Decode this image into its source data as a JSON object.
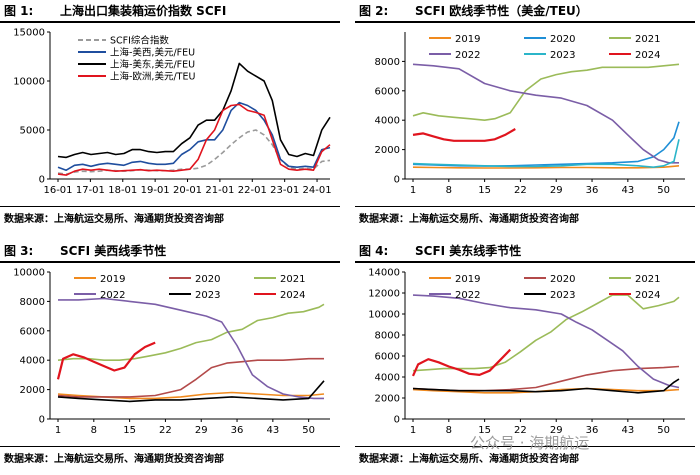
{
  "watermark": "公众号 · 海期航运",
  "charts": [
    {
      "id": "fig1",
      "title_num": "图 1:",
      "title": "上海出口集装箱运价指数 SCFI",
      "source": "数据来源：上海航运交易所、海通期货投资咨询部",
      "chart_data": {
        "type": "line",
        "xlabels": [
          "16-01",
          "17-01",
          "18-01",
          "19-01",
          "20-01",
          "21-01",
          "22-01",
          "23-01",
          "24-01"
        ],
        "ylim": [
          0,
          15000
        ],
        "yticks": [
          0,
          5000,
          10000,
          15000
        ],
        "legend_pos": "top-left",
        "series": [
          {
            "name": "SCFI综合指数",
            "color": "#9a9a9a",
            "dash": true,
            "values": [
              600,
              500,
              700,
              800,
              750,
              800,
              900,
              850,
              800,
              850,
              950,
              900,
              850,
              850,
              900,
              1000,
              1000,
              1100,
              1400,
              2000,
              2700,
              3500,
              4200,
              4800,
              5000,
              4500,
              3500,
              2000,
              1200,
              1000,
              1100,
              1000,
              1800,
              1900
            ]
          },
          {
            "name": "上海-美西,美元/FEU",
            "color": "#1f4e9e",
            "dash": false,
            "values": [
              1200,
              900,
              1400,
              1500,
              1300,
              1500,
              1600,
              1500,
              1400,
              1700,
              1800,
              1600,
              1500,
              1500,
              1600,
              2500,
              3000,
              3800,
              4000,
              4000,
              5000,
              7000,
              7800,
              7500,
              7000,
              6000,
              4500,
              2000,
              1300,
              1200,
              1300,
              1200,
              3000,
              3200
            ]
          },
          {
            "name": "上海-美东,美元/FEU",
            "color": "#000000",
            "dash": false,
            "values": [
              2300,
              2200,
              2500,
              2700,
              2500,
              2600,
              2700,
              2500,
              2600,
              3000,
              3000,
              2800,
              2700,
              2800,
              2800,
              3600,
              4200,
              5500,
              6000,
              6000,
              7000,
              9000,
              11800,
              11000,
              10500,
              10000,
              8000,
              4000,
              2500,
              2300,
              2600,
              2400,
              5000,
              6300
            ]
          },
          {
            "name": "上海-欧洲,美元/TEU",
            "color": "#e0141e",
            "dash": false,
            "values": [
              500,
              400,
              800,
              1000,
              900,
              1000,
              900,
              800,
              850,
              900,
              950,
              850,
              900,
              850,
              800,
              900,
              1000,
              2000,
              4000,
              5000,
              7000,
              7500,
              7600,
              7000,
              6800,
              6500,
              4000,
              1500,
              1000,
              900,
              1000,
              900,
              2800,
              3500
            ]
          }
        ]
      }
    },
    {
      "id": "fig2",
      "title_num": "图 2:",
      "title": "SCFI 欧线季节性（美金/TEU）",
      "source": "数据来源：上海航运交易所、海通期货投资咨询部",
      "chart_data": {
        "type": "line",
        "xlabels": [
          "1",
          "8",
          "15",
          "22",
          "29",
          "36",
          "43",
          "50"
        ],
        "ylim": [
          0,
          10000
        ],
        "yticks": [
          0,
          2000,
          4000,
          6000,
          8000
        ],
        "legend_cols": 3,
        "series": [
          {
            "name": "2019",
            "color": "#f08a1e",
            "weeks": [
              1,
              5,
              10,
              15,
              20,
              25,
              30,
              35,
              40,
              45,
              50,
              53
            ],
            "values": [
              800,
              780,
              760,
              750,
              750,
              760,
              780,
              780,
              760,
              760,
              800,
              900
            ]
          },
          {
            "name": "2020",
            "color": "#1f8fd6",
            "weeks": [
              1,
              5,
              10,
              15,
              20,
              25,
              30,
              35,
              40,
              45,
              48,
              50,
              52,
              53
            ],
            "values": [
              1000,
              950,
              900,
              880,
              900,
              950,
              1000,
              1050,
              1100,
              1200,
              1500,
              2000,
              2800,
              3900
            ]
          },
          {
            "name": "2021",
            "color": "#9bbb59",
            "weeks": [
              1,
              3,
              6,
              9,
              12,
              15,
              17,
              20,
              23,
              26,
              29,
              32,
              35,
              38,
              41,
              44,
              47,
              50,
              53
            ],
            "values": [
              4300,
              4500,
              4300,
              4200,
              4100,
              4000,
              4100,
              4500,
              6000,
              6800,
              7100,
              7300,
              7400,
              7600,
              7600,
              7600,
              7600,
              7700,
              7800
            ]
          },
          {
            "name": "2022",
            "color": "#7b5ea7",
            "weeks": [
              1,
              5,
              10,
              15,
              20,
              25,
              30,
              35,
              40,
              43,
              46,
              49,
              51,
              53
            ],
            "values": [
              7800,
              7700,
              7500,
              6500,
              6000,
              5700,
              5500,
              5000,
              4000,
              3000,
              2000,
              1300,
              1100,
              1100
            ]
          },
          {
            "name": "2023",
            "color": "#2bb5c9",
            "weeks": [
              1,
              5,
              10,
              15,
              20,
              25,
              30,
              35,
              40,
              45,
              48,
              50,
              52,
              53
            ],
            "values": [
              1050,
              1000,
              950,
              900,
              850,
              850,
              900,
              1000,
              1000,
              900,
              800,
              900,
              1200,
              2700
            ]
          },
          {
            "name": "2024",
            "color": "#e0141e",
            "weeks": [
              1,
              3,
              5,
              7,
              9,
              11,
              13,
              15,
              17,
              19,
              21
            ],
            "values": [
              3000,
              3100,
              2900,
              2700,
              2600,
              2600,
              2600,
              2600,
              2700,
              3000,
              3400
            ]
          }
        ]
      }
    },
    {
      "id": "fig3",
      "title_num": "图 3:",
      "title": "SCFI 美西线季节性",
      "source": "数据来源：上海航运交易所、海通期货投资咨询部",
      "chart_data": {
        "type": "line",
        "xlabels": [
          "1",
          "8",
          "15",
          "22",
          "29",
          "36",
          "43",
          "50"
        ],
        "ylim": [
          0,
          10000
        ],
        "yticks": [
          0,
          2000,
          4000,
          6000,
          8000,
          10000
        ],
        "legend_cols": 3,
        "series": [
          {
            "name": "2019",
            "color": "#f08a1e",
            "weeks": [
              1,
              5,
              10,
              15,
              20,
              25,
              30,
              35,
              40,
              45,
              50,
              53
            ],
            "values": [
              1700,
              1600,
              1500,
              1400,
              1400,
              1500,
              1700,
              1800,
              1700,
              1600,
              1600,
              1700
            ]
          },
          {
            "name": "2020",
            "color": "#b34a4a",
            "weeks": [
              1,
              5,
              10,
              15,
              20,
              25,
              28,
              31,
              34,
              37,
              40,
              45,
              50,
              53
            ],
            "values": [
              1600,
              1500,
              1500,
              1500,
              1600,
              2000,
              2700,
              3500,
              3800,
              3900,
              4000,
              4000,
              4100,
              4100
            ]
          },
          {
            "name": "2021",
            "color": "#9bbb59",
            "weeks": [
              1,
              4,
              7,
              10,
              13,
              16,
              19,
              22,
              25,
              28,
              31,
              34,
              37,
              40,
              43,
              46,
              49,
              52,
              53
            ],
            "values": [
              4000,
              4100,
              4100,
              4000,
              4000,
              4100,
              4300,
              4500,
              4800,
              5200,
              5400,
              5900,
              6100,
              6700,
              6900,
              7200,
              7300,
              7600,
              7800
            ]
          },
          {
            "name": "2022",
            "color": "#7b5ea7",
            "weeks": [
              1,
              5,
              10,
              15,
              20,
              25,
              30,
              33,
              36,
              39,
              42,
              45,
              48,
              51,
              53
            ],
            "values": [
              8100,
              8100,
              8200,
              8000,
              7800,
              7400,
              7000,
              6600,
              5000,
              3000,
              2200,
              1700,
              1500,
              1400,
              1400
            ]
          },
          {
            "name": "2023",
            "color": "#000000",
            "weeks": [
              1,
              5,
              10,
              15,
              20,
              25,
              30,
              35,
              40,
              45,
              50,
              52,
              53
            ],
            "values": [
              1500,
              1400,
              1300,
              1200,
              1300,
              1300,
              1400,
              1500,
              1400,
              1300,
              1400,
              2200,
              2600
            ]
          },
          {
            "name": "2024",
            "color": "#e0141e",
            "weeks": [
              1,
              2,
              4,
              6,
              8,
              10,
              12,
              14,
              16,
              18,
              20
            ],
            "values": [
              2700,
              4100,
              4400,
              4200,
              3900,
              3600,
              3300,
              3500,
              4400,
              4900,
              5200
            ]
          }
        ]
      }
    },
    {
      "id": "fig4",
      "title_num": "图 4:",
      "title": "SCFI 美东线季节性",
      "source": "数据来源：上海航运交易所、海通期货投资咨询部",
      "chart_data": {
        "type": "line",
        "xlabels": [
          "1",
          "8",
          "15",
          "22",
          "29",
          "36",
          "43",
          "50"
        ],
        "ylim": [
          0,
          14000
        ],
        "yticks": [
          0,
          2000,
          4000,
          6000,
          8000,
          10000,
          12000,
          14000
        ],
        "legend_cols": 3,
        "series": [
          {
            "name": "2019",
            "color": "#f08a1e",
            "weeks": [
              1,
              5,
              10,
              15,
              20,
              25,
              30,
              35,
              40,
              45,
              50,
              53
            ],
            "values": [
              2800,
              2700,
              2600,
              2500,
              2500,
              2600,
              2800,
              2900,
              2800,
              2700,
              2700,
              2800
            ]
          },
          {
            "name": "2020",
            "color": "#b34a4a",
            "weeks": [
              1,
              5,
              10,
              15,
              20,
              25,
              30,
              35,
              40,
              45,
              50,
              53
            ],
            "values": [
              2900,
              2800,
              2700,
              2700,
              2800,
              3000,
              3600,
              4200,
              4600,
              4800,
              4900,
              5000
            ]
          },
          {
            "name": "2021",
            "color": "#9bbb59",
            "weeks": [
              1,
              4,
              7,
              10,
              13,
              16,
              19,
              22,
              25,
              28,
              31,
              34,
              37,
              40,
              43,
              46,
              49,
              52,
              53
            ],
            "values": [
              4600,
              4700,
              4800,
              4800,
              4800,
              4900,
              5400,
              6400,
              7500,
              8300,
              9500,
              10200,
              11000,
              11800,
              11800,
              10500,
              10800,
              11200,
              11600
            ]
          },
          {
            "name": "2022",
            "color": "#7b5ea7",
            "weeks": [
              1,
              5,
              10,
              15,
              20,
              25,
              30,
              33,
              36,
              39,
              42,
              45,
              48,
              51,
              53
            ],
            "values": [
              11800,
              11700,
              11500,
              11000,
              10600,
              10400,
              10000,
              9200,
              8500,
              7500,
              6500,
              5000,
              3800,
              3200,
              3000
            ]
          },
          {
            "name": "2023",
            "color": "#000000",
            "weeks": [
              1,
              5,
              10,
              15,
              20,
              25,
              30,
              35,
              40,
              45,
              50,
              52,
              53
            ],
            "values": [
              2900,
              2800,
              2700,
              2700,
              2700,
              2600,
              2700,
              2900,
              2700,
              2500,
              2700,
              3500,
              3800
            ]
          },
          {
            "name": "2024",
            "color": "#e0141e",
            "weeks": [
              1,
              2,
              4,
              6,
              8,
              10,
              12,
              14,
              16,
              18,
              20
            ],
            "values": [
              4100,
              5200,
              5700,
              5400,
              5000,
              4700,
              4300,
              4200,
              4600,
              5600,
              6600
            ]
          }
        ]
      }
    }
  ]
}
